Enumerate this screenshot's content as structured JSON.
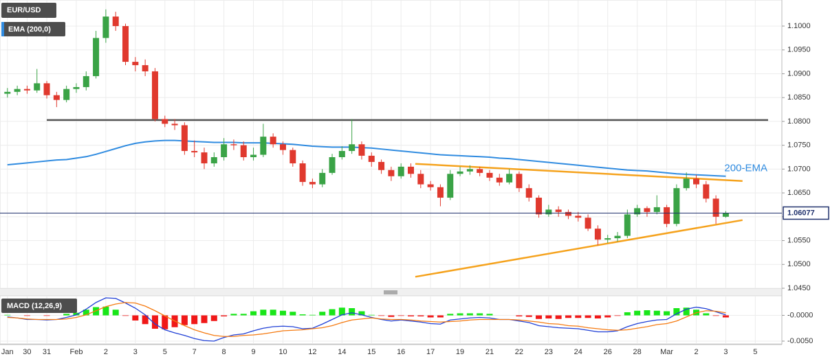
{
  "chart_data": [
    {
      "type": "candlestick",
      "title": "EUR/USD",
      "indicator": "EMA (200,0)",
      "categories": [
        "Jan",
        null,
        "30",
        null,
        "31",
        null,
        null,
        "Feb",
        null,
        null,
        "2",
        null,
        null,
        "3",
        null,
        null,
        "5",
        null,
        null,
        "7",
        null,
        null,
        "8",
        null,
        null,
        "9",
        null,
        null,
        "10",
        null,
        null,
        "12",
        null,
        null,
        "14",
        null,
        null,
        "15",
        null,
        null,
        "16",
        null,
        null,
        "17",
        null,
        null,
        "19",
        null,
        null,
        "21",
        null,
        null,
        "22",
        null,
        null,
        "23",
        null,
        null,
        "24",
        null,
        null,
        "26",
        null,
        null,
        "28",
        null,
        null,
        "Mar",
        null,
        null,
        "2",
        null,
        null,
        "3",
        null,
        null,
        "5"
      ],
      "open": [
        1.0858,
        1.0862,
        1.0868,
        1.0865,
        1.088,
        1.0855,
        1.0845,
        1.0868,
        1.0872,
        1.0895,
        1.0975,
        1.102,
        1.1,
        1.0925,
        1.0918,
        1.0905,
        1.0805,
        1.0795,
        1.0792,
        1.0738,
        1.0735,
        1.0712,
        1.0725,
        1.0752,
        1.075,
        1.0725,
        1.073,
        1.0768,
        1.0752,
        1.074,
        1.0712,
        1.0673,
        1.0668,
        1.0692,
        1.0725,
        1.0738,
        1.0752,
        1.0728,
        1.0715,
        1.0698,
        1.0685,
        1.0705,
        1.069,
        1.0668,
        1.0662,
        1.064,
        1.069,
        1.0695,
        1.07,
        1.0692,
        1.0682,
        1.0672,
        1.069,
        1.066,
        1.064,
        1.0605,
        1.0615,
        1.061,
        1.0602,
        1.0598,
        1.0575,
        1.0552,
        1.0555,
        1.056,
        1.0605,
        1.0618,
        1.061,
        1.062,
        1.0585,
        1.066,
        1.068,
        1.0668,
        1.0638,
        1.06,
        null,
        null,
        null
      ],
      "high": [
        1.087,
        1.0875,
        1.0875,
        1.091,
        1.0885,
        1.0862,
        1.0875,
        1.088,
        1.0905,
        1.099,
        1.1035,
        1.103,
        1.1005,
        1.0935,
        1.093,
        1.0912,
        1.0812,
        1.0805,
        1.0798,
        1.076,
        1.0745,
        1.0735,
        1.0765,
        1.0762,
        1.0758,
        1.0745,
        1.0795,
        1.0775,
        1.0758,
        1.0745,
        1.0718,
        1.068,
        1.07,
        1.0732,
        1.0748,
        1.0805,
        1.0758,
        1.0735,
        1.072,
        1.0705,
        1.0712,
        1.0712,
        1.0698,
        1.0675,
        1.0668,
        1.0698,
        1.0705,
        1.0708,
        1.0705,
        1.0698,
        1.069,
        1.07,
        1.0695,
        1.0668,
        1.0645,
        1.0625,
        1.0622,
        1.0615,
        1.061,
        1.0605,
        1.0582,
        1.0562,
        1.0568,
        1.0615,
        1.0625,
        1.0622,
        1.0645,
        1.0625,
        1.0668,
        1.0693,
        1.0688,
        1.0675,
        1.0645,
        1.0612,
        null,
        null,
        null
      ],
      "low": [
        1.085,
        1.0855,
        1.0858,
        1.086,
        1.0848,
        1.083,
        1.084,
        1.086,
        1.0865,
        1.089,
        1.0965,
        1.099,
        1.0918,
        1.0905,
        1.0895,
        1.08,
        1.0788,
        1.0782,
        1.073,
        1.0725,
        1.07,
        1.0705,
        1.0718,
        1.074,
        1.0718,
        1.0718,
        1.0725,
        1.0745,
        1.073,
        1.0705,
        1.0665,
        1.066,
        1.0662,
        1.0688,
        1.072,
        1.0732,
        1.072,
        1.0705,
        1.069,
        1.0675,
        1.068,
        1.0682,
        1.066,
        1.0655,
        1.0622,
        1.0635,
        1.0685,
        1.0688,
        1.0685,
        1.0675,
        1.0665,
        1.0668,
        1.0652,
        1.0632,
        1.0598,
        1.06,
        1.06,
        1.0595,
        1.059,
        1.057,
        1.054,
        1.0545,
        1.0548,
        1.0555,
        1.06,
        1.06,
        1.0605,
        1.0578,
        1.058,
        1.0655,
        1.066,
        1.063,
        1.0585,
        1.0598,
        null,
        null,
        null
      ],
      "close": [
        1.0862,
        1.0868,
        1.0865,
        1.088,
        1.0855,
        1.0845,
        1.0868,
        1.0872,
        1.0895,
        1.0975,
        1.102,
        1.1,
        1.0925,
        1.0918,
        1.0905,
        1.0805,
        1.0795,
        1.0792,
        1.0738,
        1.0735,
        1.0712,
        1.0725,
        1.0752,
        1.075,
        1.0725,
        1.073,
        1.0768,
        1.0752,
        1.074,
        1.0712,
        1.0673,
        1.0668,
        1.0692,
        1.0725,
        1.0738,
        1.0752,
        1.0728,
        1.0715,
        1.0698,
        1.0685,
        1.0705,
        1.069,
        1.0668,
        1.0662,
        1.064,
        1.069,
        1.0695,
        1.07,
        1.0692,
        1.0682,
        1.0672,
        1.069,
        1.066,
        1.064,
        1.0605,
        1.0615,
        1.061,
        1.0602,
        1.0598,
        1.0575,
        1.0552,
        1.0555,
        1.056,
        1.0605,
        1.0618,
        1.061,
        1.062,
        1.0585,
        1.066,
        1.068,
        1.0668,
        1.0638,
        1.06,
        1.0608,
        null,
        null,
        null
      ],
      "up_color": "#3aa346",
      "down_color": "#e0392e",
      "series": [
        {
          "name": "200-EMA",
          "color": "#2f8be0",
          "values": [
            1.0709,
            1.0711,
            1.0713,
            1.0715,
            1.0717,
            1.0719,
            1.072,
            1.0723,
            1.0726,
            1.0731,
            1.0737,
            1.0743,
            1.0749,
            1.0754,
            1.0757,
            1.0759,
            1.076,
            1.076,
            1.0759,
            1.0758,
            1.0757,
            1.0756,
            1.0756,
            1.0756,
            1.0755,
            1.0755,
            1.0755,
            1.0754,
            1.0753,
            1.0752,
            1.075,
            1.0748,
            1.0747,
            1.0746,
            1.0746,
            1.0746,
            1.0745,
            1.0744,
            1.0742,
            1.074,
            1.0738,
            1.0736,
            1.0734,
            1.0732,
            1.073,
            1.0729,
            1.0728,
            1.0727,
            1.0726,
            1.0725,
            1.0723,
            1.0722,
            1.072,
            1.0718,
            1.0716,
            1.0714,
            1.0712,
            1.071,
            1.0708,
            1.0706,
            1.0704,
            1.0702,
            1.07,
            1.0698,
            1.0697,
            1.0696,
            1.0694,
            1.0692,
            1.069,
            1.0689,
            1.0688,
            1.0687,
            1.0686,
            1.0685,
            null,
            null,
            null
          ]
        }
      ],
      "lines": [
        {
          "color": "#555555",
          "x": [
            4,
            77.3
          ],
          "values": [
            1.0803,
            1.0803
          ]
        },
        {
          "color": "#f5a21c",
          "x": [
            41.45,
            74.7
          ],
          "values": [
            1.0711,
            1.0675
          ]
        },
        {
          "color": "#f5a21c",
          "x": [
            41.45,
            74.7
          ],
          "values": [
            1.0474,
            1.0593
          ]
        }
      ],
      "last_price": 1.06077,
      "last_price_color": "#1e2f6b",
      "ylim": [
        1.045,
        1.10547
      ],
      "yticks": [
        {
          "value": 1.1,
          "label": "1.1000"
        },
        {
          "value": 1.095,
          "label": "1.0950"
        },
        {
          "value": 1.09,
          "label": "1.0900"
        },
        {
          "value": 1.085,
          "label": "1.0850"
        },
        {
          "value": 1.08,
          "label": "1.0800"
        },
        {
          "value": 1.075,
          "label": "1.0750"
        },
        {
          "value": 1.07,
          "label": "1.0700"
        },
        {
          "value": 1.065,
          "label": "1.0650"
        },
        {
          "value": 1.06,
          "label": "1.0600"
        },
        {
          "value": 1.055,
          "label": "1.0550"
        },
        {
          "value": 1.05,
          "label": "1.0500"
        },
        {
          "value": 1.045,
          "label": "1.0450"
        }
      ],
      "grid": true
    },
    {
      "type": "macd",
      "title": "MACD (12,26,9)",
      "histogram": [
        0.0001,
        0,
        -0.0001,
        0,
        -0.0001,
        0,
        0.0003,
        0.0005,
        0.0011,
        0.0016,
        0.0017,
        0.0011,
        -0.0001,
        -0.001,
        -0.0017,
        -0.0026,
        -0.0027,
        -0.0023,
        -0.0019,
        -0.0017,
        -0.0015,
        -0.0011,
        -0.0002,
        0.0003,
        0.0003,
        0.0008,
        0.0011,
        0.0011,
        0.0009,
        0.0007,
        0.0002,
        0.0001,
        0.0007,
        0.0012,
        0.0015,
        0.0014,
        0.0008,
        0.0001,
        -0.0001,
        -0.0003,
        -0.0001,
        -0.0002,
        -0.0002,
        -0.0004,
        -0.0004,
        0.0003,
        0.0004,
        0.0004,
        0.0004,
        0.0003,
        0,
        0,
        -0.0002,
        -0.0003,
        -0.0007,
        -0.0006,
        -0.0007,
        -0.0005,
        -0.0005,
        -0.0005,
        -0.0006,
        -0.0004,
        -0.0001,
        0.0006,
        0.0009,
        0.001,
        0.0009,
        0.0008,
        0.0014,
        0.0015,
        0.0011,
        0.0004,
        -0.0001,
        -0.0004,
        null,
        null,
        null
      ],
      "up_color": "#19e619",
      "down_color": "#f01818",
      "lines": [
        {
          "color": "#1f3fd6",
          "values": [
            -0.0003,
            -0.0005,
            -0.0008,
            -0.0008,
            -0.0009,
            -0.0008,
            -0.0004,
            0.0001,
            0.0012,
            0.0025,
            0.0034,
            0.0033,
            0.0024,
            0.0014,
            0.0001,
            -0.0017,
            -0.0028,
            -0.0034,
            -0.0039,
            -0.0045,
            -0.0049,
            -0.005,
            -0.0043,
            -0.0038,
            -0.0036,
            -0.003,
            -0.0025,
            -0.0022,
            -0.0021,
            -0.0022,
            -0.0026,
            -0.0025,
            -0.0017,
            -0.0008,
            0.0001,
            0.0005,
            0.0001,
            -0.0004,
            -0.0008,
            -0.0011,
            -0.0009,
            -0.0011,
            -0.0013,
            -0.0016,
            -0.0017,
            -0.0009,
            -0.0007,
            -0.0005,
            -0.0004,
            -0.0005,
            -0.0008,
            -0.0008,
            -0.0011,
            -0.0014,
            -0.002,
            -0.0022,
            -0.0024,
            -0.0025,
            -0.0026,
            -0.0029,
            -0.0032,
            -0.0032,
            -0.003,
            -0.0022,
            -0.0016,
            -0.0012,
            -0.0009,
            -0.0008,
            0.0003,
            0.0012,
            0.0016,
            0.0013,
            0.0007,
            0.0001,
            null,
            null,
            null
          ]
        },
        {
          "color": "#f57a10",
          "values": [
            -0.0004,
            -0.0005,
            -0.0007,
            -0.0008,
            -0.0008,
            -0.0008,
            -0.0007,
            -0.0004,
            0.0001,
            0.0009,
            0.0017,
            0.0022,
            0.0025,
            0.0024,
            0.0018,
            0.0009,
            -0.0001,
            -0.0011,
            -0.002,
            -0.0028,
            -0.0034,
            -0.0039,
            -0.0041,
            -0.0041,
            -0.0039,
            -0.0038,
            -0.0036,
            -0.0033,
            -0.003,
            -0.0029,
            -0.0028,
            -0.0026,
            -0.0024,
            -0.002,
            -0.0014,
            -0.0009,
            -0.0007,
            -0.0005,
            -0.0007,
            -0.0008,
            -0.0008,
            -0.0009,
            -0.0011,
            -0.0012,
            -0.0013,
            -0.0012,
            -0.0011,
            -0.0009,
            -0.0008,
            -0.0008,
            -0.0008,
            -0.0008,
            -0.0009,
            -0.0011,
            -0.0013,
            -0.0016,
            -0.0017,
            -0.002,
            -0.0021,
            -0.0024,
            -0.0026,
            -0.0028,
            -0.0029,
            -0.0028,
            -0.0025,
            -0.0022,
            -0.0018,
            -0.0016,
            -0.0011,
            -0.0003,
            0.0005,
            0.0009,
            0.0008,
            0.0005,
            null,
            null,
            null
          ]
        }
      ],
      "ylim": [
        -0.0054,
        0.0038
      ],
      "yticks": [
        {
          "value": 0,
          "label": "-0.0000"
        },
        {
          "value": -0.005,
          "label": "-0.0050"
        }
      ],
      "grid": true
    }
  ]
}
